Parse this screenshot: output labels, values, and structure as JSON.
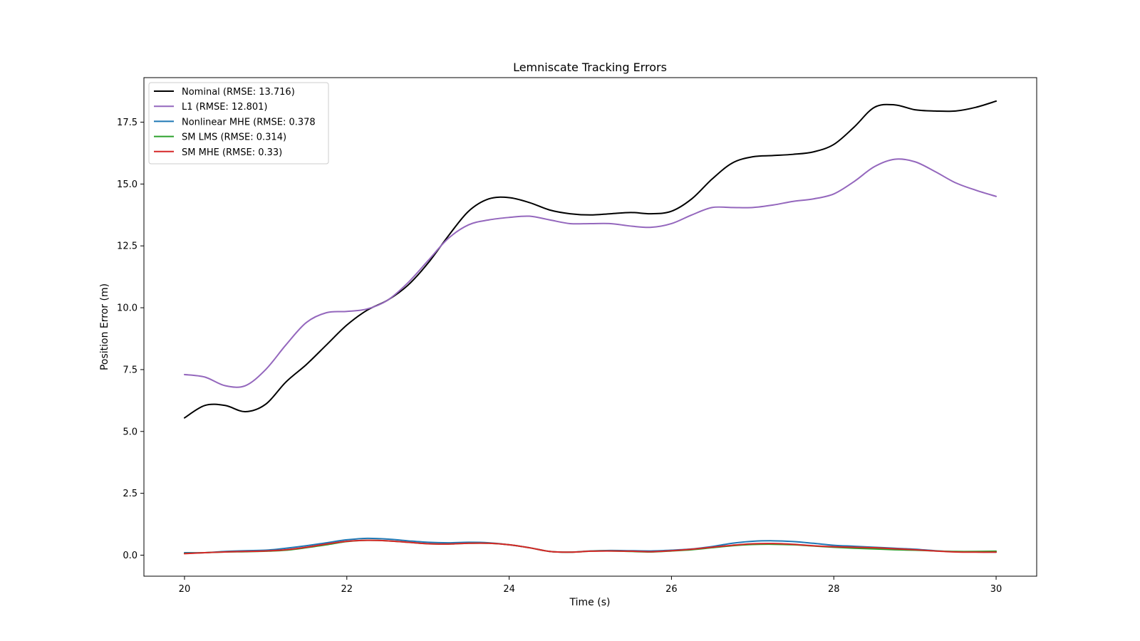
{
  "chart_data": {
    "type": "line",
    "title": "Lemniscate Tracking Errors",
    "xlabel": "Time (s)",
    "ylabel": "Position Error (m)",
    "xlim": [
      19.5,
      30.5
    ],
    "ylim": [
      -0.85,
      19.3
    ],
    "xticks": [
      20,
      22,
      24,
      26,
      28,
      30
    ],
    "xtick_labels": [
      "20",
      "22",
      "24",
      "26",
      "28",
      "30"
    ],
    "yticks": [
      0.0,
      2.5,
      5.0,
      7.5,
      10.0,
      12.5,
      15.0,
      17.5
    ],
    "ytick_labels": [
      "0.0",
      "2.5",
      "5.0",
      "7.5",
      "10.0",
      "12.5",
      "15.0",
      "17.5"
    ],
    "grid": false,
    "legend_position": "top-left",
    "x": [
      20.0,
      20.25,
      20.5,
      20.75,
      21.0,
      21.25,
      21.5,
      21.75,
      22.0,
      22.25,
      22.5,
      22.75,
      23.0,
      23.25,
      23.5,
      23.75,
      24.0,
      24.25,
      24.5,
      24.75,
      25.0,
      25.25,
      25.5,
      25.75,
      26.0,
      26.25,
      26.5,
      26.75,
      27.0,
      27.25,
      27.5,
      27.75,
      28.0,
      28.25,
      28.5,
      28.75,
      29.0,
      29.25,
      29.5,
      29.75,
      30.0
    ],
    "series": [
      {
        "name": "Nominal (RMSE: 13.716)",
        "color": "#000000",
        "values": [
          5.55,
          6.05,
          6.05,
          5.8,
          6.1,
          7.0,
          7.7,
          8.5,
          9.3,
          9.9,
          10.3,
          10.9,
          11.8,
          12.9,
          13.9,
          14.4,
          14.45,
          14.25,
          13.95,
          13.8,
          13.75,
          13.8,
          13.85,
          13.8,
          13.9,
          14.4,
          15.2,
          15.85,
          16.1,
          16.15,
          16.2,
          16.3,
          16.6,
          17.3,
          18.1,
          18.2,
          18.0,
          17.95,
          17.95,
          18.1,
          18.35
        ]
      },
      {
        "name": "L1 (RMSE: 12.801)",
        "color": "#9467bd",
        "values": [
          7.3,
          7.2,
          6.85,
          6.85,
          7.5,
          8.5,
          9.4,
          9.8,
          9.85,
          9.95,
          10.3,
          11.0,
          11.9,
          12.8,
          13.35,
          13.55,
          13.65,
          13.7,
          13.55,
          13.4,
          13.4,
          13.4,
          13.3,
          13.25,
          13.4,
          13.75,
          14.05,
          14.05,
          14.05,
          14.15,
          14.3,
          14.4,
          14.6,
          15.1,
          15.7,
          16.0,
          15.9,
          15.5,
          15.05,
          14.75,
          14.5
        ]
      },
      {
        "name": "Nonlinear MHE (RMSE: 0.378",
        "color": "#1f77b4",
        "values": [
          0.1,
          0.1,
          0.15,
          0.18,
          0.2,
          0.28,
          0.38,
          0.5,
          0.62,
          0.68,
          0.65,
          0.58,
          0.52,
          0.5,
          0.52,
          0.5,
          0.42,
          0.3,
          0.15,
          0.12,
          0.17,
          0.19,
          0.18,
          0.17,
          0.2,
          0.25,
          0.35,
          0.48,
          0.56,
          0.58,
          0.55,
          0.48,
          0.4,
          0.36,
          0.32,
          0.28,
          0.24,
          0.18,
          0.14,
          0.13,
          0.12
        ]
      },
      {
        "name": "SM LMS (RMSE: 0.314)",
        "color": "#2ca02c",
        "values": [
          0.07,
          0.1,
          0.13,
          0.14,
          0.16,
          0.2,
          0.3,
          0.42,
          0.55,
          0.6,
          0.58,
          0.52,
          0.46,
          0.45,
          0.48,
          0.48,
          0.42,
          0.3,
          0.15,
          0.12,
          0.16,
          0.17,
          0.15,
          0.13,
          0.17,
          0.22,
          0.3,
          0.38,
          0.43,
          0.44,
          0.42,
          0.37,
          0.32,
          0.28,
          0.25,
          0.22,
          0.2,
          0.17,
          0.15,
          0.15,
          0.16
        ]
      },
      {
        "name": "SM MHE (RMSE: 0.33)",
        "color": "#d62728",
        "values": [
          0.06,
          0.1,
          0.13,
          0.15,
          0.17,
          0.22,
          0.32,
          0.45,
          0.56,
          0.6,
          0.58,
          0.52,
          0.46,
          0.45,
          0.48,
          0.48,
          0.42,
          0.3,
          0.15,
          0.12,
          0.16,
          0.17,
          0.16,
          0.14,
          0.18,
          0.24,
          0.32,
          0.4,
          0.46,
          0.47,
          0.44,
          0.38,
          0.34,
          0.32,
          0.3,
          0.26,
          0.22,
          0.17,
          0.13,
          0.12,
          0.12
        ]
      }
    ]
  }
}
